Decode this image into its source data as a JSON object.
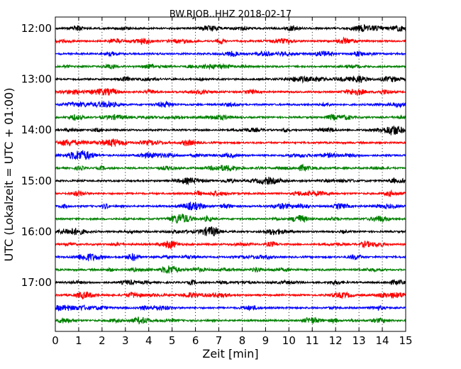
{
  "chart_data": {
    "type": "line",
    "title": "BW.RJOB..HHZ 2018-02-17",
    "xlabel": "Zeit  [min]",
    "ylabel": "UTC (Lokalzeit = UTC + 01:00)",
    "xlim": [
      0,
      15
    ],
    "x_ticks": [
      "0",
      "1",
      "2",
      "3",
      "4",
      "5",
      "6",
      "7",
      "8",
      "9",
      "10",
      "11",
      "12",
      "13",
      "14",
      "15"
    ],
    "y_tick_labels": [
      "12:00",
      "13:00",
      "14:00",
      "15:00",
      "16:00",
      "17:00"
    ],
    "grid": "vertical dotted lines at each minute",
    "trace_colors": [
      "#000000",
      "#ff0000",
      "#0000ff",
      "#008000"
    ],
    "traces": [
      {
        "start": "12:00",
        "color": "#000000"
      },
      {
        "start": "12:15",
        "color": "#ff0000"
      },
      {
        "start": "12:30",
        "color": "#0000ff"
      },
      {
        "start": "12:45",
        "color": "#008000"
      },
      {
        "start": "13:00",
        "color": "#000000"
      },
      {
        "start": "13:15",
        "color": "#ff0000"
      },
      {
        "start": "13:30",
        "color": "#0000ff"
      },
      {
        "start": "13:45",
        "color": "#008000"
      },
      {
        "start": "14:00",
        "color": "#000000"
      },
      {
        "start": "14:15",
        "color": "#ff0000"
      },
      {
        "start": "14:30",
        "color": "#0000ff"
      },
      {
        "start": "14:45",
        "color": "#008000"
      },
      {
        "start": "15:00",
        "color": "#000000"
      },
      {
        "start": "15:15",
        "color": "#ff0000"
      },
      {
        "start": "15:30",
        "color": "#0000ff"
      },
      {
        "start": "15:45",
        "color": "#008000"
      },
      {
        "start": "16:00",
        "color": "#000000"
      },
      {
        "start": "16:15",
        "color": "#ff0000"
      },
      {
        "start": "16:30",
        "color": "#0000ff"
      },
      {
        "start": "16:45",
        "color": "#008000"
      },
      {
        "start": "17:00",
        "color": "#000000"
      },
      {
        "start": "17:15",
        "color": "#ff0000"
      },
      {
        "start": "17:30",
        "color": "#0000ff"
      },
      {
        "start": "17:45",
        "color": "#008000"
      }
    ]
  }
}
